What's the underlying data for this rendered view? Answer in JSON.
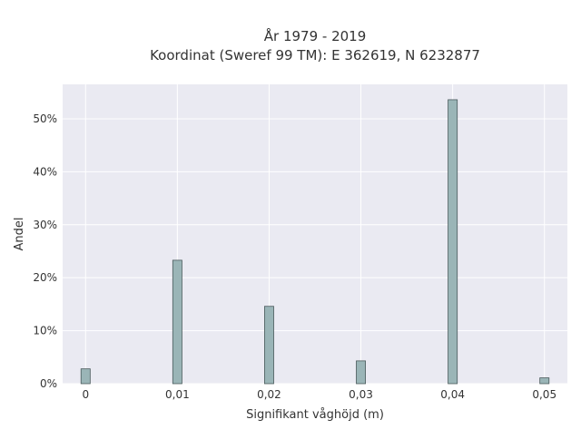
{
  "chart_data": {
    "type": "bar",
    "title_line1": "År 1979 - 2019",
    "title_line2": "Koordinat (Sweref 99 TM): E 362619, N 6232877",
    "xlabel": "Signifikant våghöjd (m)",
    "ylabel": "Andel",
    "x_ticks": [
      {
        "value": 0.0,
        "label": "0"
      },
      {
        "value": 0.01,
        "label": "0,01"
      },
      {
        "value": 0.02,
        "label": "0,02"
      },
      {
        "value": 0.03,
        "label": "0,03"
      },
      {
        "value": 0.04,
        "label": "0,04"
      },
      {
        "value": 0.05,
        "label": "0,05"
      }
    ],
    "y_ticks": [
      {
        "value": 0,
        "label": "0%"
      },
      {
        "value": 10,
        "label": "10%"
      },
      {
        "value": 20,
        "label": "20%"
      },
      {
        "value": 30,
        "label": "30%"
      },
      {
        "value": 40,
        "label": "40%"
      },
      {
        "value": 50,
        "label": "50%"
      }
    ],
    "xlim": [
      -0.0025,
      0.0525
    ],
    "ylim": [
      0,
      56.5
    ],
    "grid": true,
    "legend": "none",
    "bars": [
      {
        "x": 0.0,
        "value": 2.8
      },
      {
        "x": 0.01,
        "value": 23.3
      },
      {
        "x": 0.02,
        "value": 14.6
      },
      {
        "x": 0.03,
        "value": 4.3
      },
      {
        "x": 0.04,
        "value": 53.6
      },
      {
        "x": 0.05,
        "value": 1.1
      }
    ],
    "colors": {
      "plot_background": "#eaeaf2",
      "grid": "#ffffff",
      "bar_fill": "#9ab5b7",
      "bar_edge": "#4a5a5b",
      "text": "#333333"
    }
  }
}
